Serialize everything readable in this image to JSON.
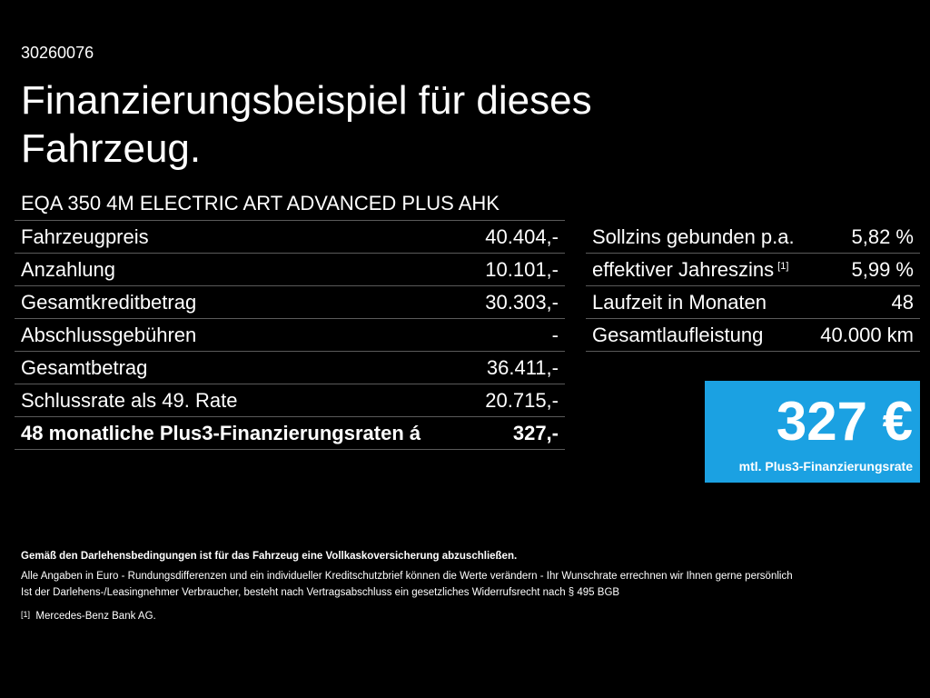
{
  "code": "30260076",
  "title": "Finanzierungsbeispiel für dieses Fahrzeug.",
  "model": "EQA 350 4M ELECTRIC ART ADVANCED PLUS AHK",
  "left_rows": [
    {
      "label": "Fahrzeugpreis",
      "value": "40.404,-"
    },
    {
      "label": "Anzahlung",
      "value": "10.101,-"
    },
    {
      "label": "Gesamtkreditbetrag",
      "value": "30.303,-"
    },
    {
      "label": "Abschlussgebühren",
      "value": "-"
    },
    {
      "label": "Gesamtbetrag",
      "value": "36.411,-"
    },
    {
      "label": "Schlussrate als 49. Rate",
      "value": "20.715,-"
    },
    {
      "label": "48 monatliche Plus3-Finanzierungsraten á",
      "value": "327,-"
    }
  ],
  "right_rows": [
    {
      "label": "Sollzins gebunden p.a.",
      "value": "5,82 %"
    },
    {
      "label": "effektiver Jahreszins",
      "sup": "[1]",
      "value": "5,99 %"
    },
    {
      "label": "Laufzeit in Monaten",
      "value": "48"
    },
    {
      "label": "Gesamtlaufleistung",
      "value": "40.000 km"
    }
  ],
  "rate_box": {
    "amount": "327 €",
    "caption": "mtl. Plus3-Finanzierungsrate",
    "color": "#1ba1e2"
  },
  "footer": {
    "insurance": "Gemäß den Darlehensbedingungen ist für das Fahrzeug eine Vollkaskoversicherung abzuschließen.",
    "line1": "Alle Angaben in Euro - Rundungsdifferenzen und ein individueller Kreditschutzbrief können die Werte verändern - Ihr Wunschrate errechnen wir Ihnen gerne persönlich",
    "line2": "Ist der Darlehens-/Leasingnehmer Verbraucher, besteht nach Vertragsabschluss ein gesetzliches Widerrufsrecht nach § 495 BGB",
    "note_mark": "[1]",
    "note": "Mercedes-Benz Bank AG."
  }
}
